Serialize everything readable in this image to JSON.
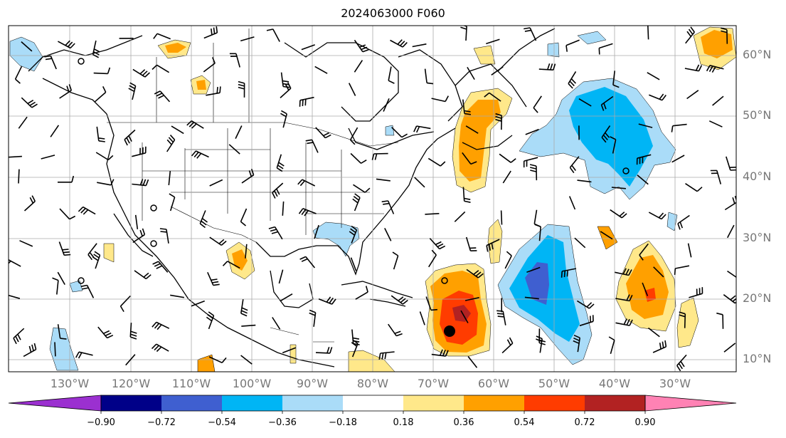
{
  "title": "2024063000 F060",
  "lat_labels": [
    "60°N",
    "50°N",
    "40°N",
    "30°N",
    "20°N",
    "10°N"
  ],
  "lon_labels": [
    "130°W",
    "120°W",
    "110°W",
    "100°W",
    "90°W",
    "80°W",
    "70°W",
    "60°W",
    "50°W",
    "40°W",
    "30°W"
  ],
  "colorbar": {
    "ticks": [
      "−0.90",
      "−0.72",
      "−0.54",
      "−0.36",
      "−0.18",
      "0.18",
      "0.36",
      "0.54",
      "0.72",
      "0.90"
    ],
    "colors": [
      "#9b30d0",
      "#000088",
      "#3f5fd0",
      "#00b5f5",
      "#aadcf8",
      "#ffffff",
      "#ffe88a",
      "#ffa000",
      "#ff3c00",
      "#b22222",
      "#ff82b4"
    ]
  },
  "chart_data": {
    "type": "heatmap",
    "title": "2024063000 F060",
    "lon_range": [
      -140,
      -20
    ],
    "lat_range": [
      8,
      65
    ],
    "lat_ticks": [
      60,
      50,
      40,
      30,
      20,
      10
    ],
    "lon_ticks": [
      -130,
      -120,
      -110,
      -100,
      -90,
      -80,
      -70,
      -60,
      -50,
      -40,
      -30
    ],
    "grid": true,
    "colorbar_levels": [
      -0.9,
      -0.72,
      -0.54,
      -0.36,
      -0.18,
      0.18,
      0.36,
      0.54,
      0.72,
      0.9
    ],
    "features": [
      {
        "type": "positive",
        "lon": -65,
        "lat": 18,
        "peak": 0.8
      },
      {
        "type": "positive",
        "lon": -69,
        "lat": 45,
        "peak": 0.5
      },
      {
        "type": "positive",
        "lon": -38,
        "lat": 22,
        "peak": 0.6
      },
      {
        "type": "negative",
        "lon": -53,
        "lat": 22,
        "peak": -0.6
      },
      {
        "type": "negative",
        "lon": -46,
        "lat": 47,
        "peak": -0.45
      },
      {
        "type": "negative",
        "lon": -85,
        "lat": 32,
        "peak": -0.3
      }
    ]
  }
}
